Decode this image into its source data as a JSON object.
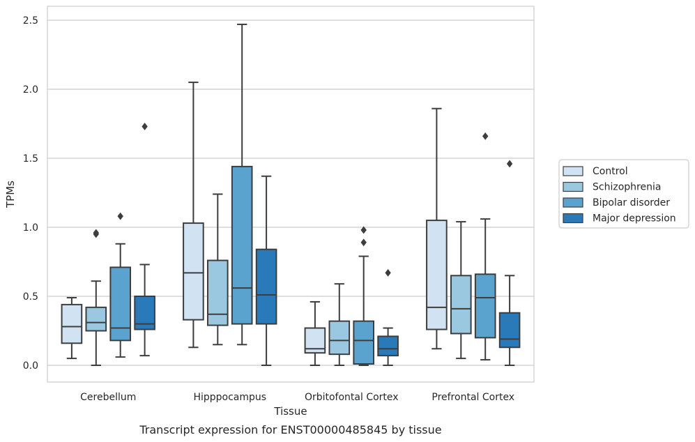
{
  "caption": "Transcript expression for ENST00000485845 by tissue",
  "chart_data": {
    "type": "box",
    "xlabel": "Tissue",
    "ylabel": "TPMs",
    "ylim": [
      -0.12,
      2.6
    ],
    "yticks": [
      0.0,
      0.5,
      1.0,
      1.5,
      2.0,
      2.5
    ],
    "ytick_labels": [
      "0.0",
      "0.5",
      "1.0",
      "1.5",
      "2.0",
      "2.5"
    ],
    "grid": "horizontal",
    "legend_position": "right",
    "categories": [
      "Cerebellum",
      "Hipppocampus",
      "Orbitofontal Cortex",
      "Prefrontal Cortex"
    ],
    "series": [
      {
        "name": "Control",
        "color": "#d1e3f3",
        "boxes": [
          {
            "whislo": 0.05,
            "q1": 0.16,
            "med": 0.28,
            "q3": 0.44,
            "whishi": 0.49,
            "fliers": []
          },
          {
            "whislo": 0.13,
            "q1": 0.33,
            "med": 0.67,
            "q3": 1.03,
            "whishi": 2.05,
            "fliers": []
          },
          {
            "whislo": 0.0,
            "q1": 0.09,
            "med": 0.12,
            "q3": 0.27,
            "whishi": 0.46,
            "fliers": []
          },
          {
            "whislo": 0.12,
            "q1": 0.26,
            "med": 0.42,
            "q3": 1.05,
            "whishi": 1.86,
            "fliers": []
          }
        ]
      },
      {
        "name": "Schizophrenia",
        "color": "#9ac8e0",
        "boxes": [
          {
            "whislo": 0.0,
            "q1": 0.25,
            "med": 0.31,
            "q3": 0.42,
            "whishi": 0.61,
            "fliers": [
              0.95,
              0.96
            ]
          },
          {
            "whislo": 0.15,
            "q1": 0.29,
            "med": 0.37,
            "q3": 0.76,
            "whishi": 1.24,
            "fliers": []
          },
          {
            "whislo": 0.0,
            "q1": 0.08,
            "med": 0.18,
            "q3": 0.32,
            "whishi": 0.59,
            "fliers": []
          },
          {
            "whislo": 0.05,
            "q1": 0.23,
            "med": 0.41,
            "q3": 0.65,
            "whishi": 1.04,
            "fliers": []
          }
        ]
      },
      {
        "name": "Bipolar disorder",
        "color": "#5ba3cf",
        "boxes": [
          {
            "whislo": 0.06,
            "q1": 0.18,
            "med": 0.27,
            "q3": 0.71,
            "whishi": 0.88,
            "fliers": [
              1.08
            ]
          },
          {
            "whislo": 0.15,
            "q1": 0.3,
            "med": 0.56,
            "q3": 1.44,
            "whishi": 2.47,
            "fliers": []
          },
          {
            "whislo": 0.0,
            "q1": 0.01,
            "med": 0.18,
            "q3": 0.32,
            "whishi": 0.79,
            "fliers": [
              0.89,
              0.98
            ]
          },
          {
            "whislo": 0.04,
            "q1": 0.2,
            "med": 0.49,
            "q3": 0.66,
            "whishi": 1.06,
            "fliers": [
              1.66
            ]
          }
        ]
      },
      {
        "name": "Major depression",
        "color": "#2a7ab9",
        "boxes": [
          {
            "whislo": 0.07,
            "q1": 0.26,
            "med": 0.3,
            "q3": 0.5,
            "whishi": 0.73,
            "fliers": [
              1.73
            ]
          },
          {
            "whislo": 0.0,
            "q1": 0.3,
            "med": 0.51,
            "q3": 0.84,
            "whishi": 1.37,
            "fliers": []
          },
          {
            "whislo": 0.0,
            "q1": 0.07,
            "med": 0.12,
            "q3": 0.21,
            "whishi": 0.27,
            "fliers": [
              0.67
            ]
          },
          {
            "whislo": 0.0,
            "q1": 0.13,
            "med": 0.19,
            "q3": 0.38,
            "whishi": 0.65,
            "fliers": [
              1.46
            ]
          }
        ]
      }
    ]
  }
}
